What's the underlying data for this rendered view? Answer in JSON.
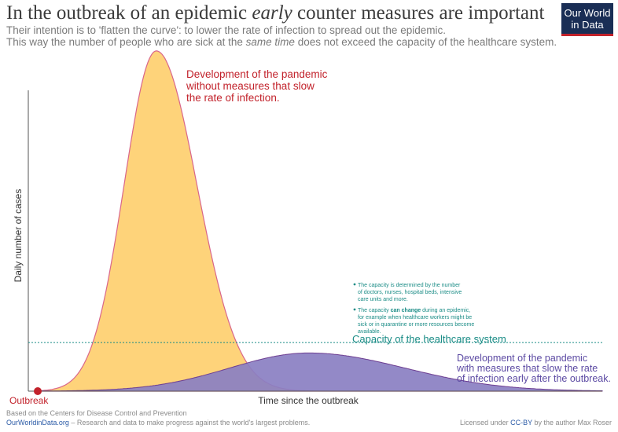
{
  "header": {
    "title_part1": "In the outbreak of an epidemic ",
    "title_em": "early",
    "title_part2": " counter measures are important",
    "subtitle1": "Their intention is to 'flatten the curve': to lower the rate of infection to spread out the epidemic.",
    "subtitle2_part1": "This way the number of people who are sick at the ",
    "subtitle2_em": "same time",
    "subtitle2_part2": " does not exceed the capacity of the healthcare system.",
    "logo_line1": "Our World",
    "logo_line2": "in Data"
  },
  "chart_data": {
    "type": "area",
    "xlabel": "Time since the outbreak",
    "ylabel": "Daily number of cases",
    "xlim": [
      0,
      100
    ],
    "ylim": [
      0,
      100
    ],
    "series": [
      {
        "name": "Development of the pandemic without measures that slow the rate of infection.",
        "label_lines": [
          "Development of the pandemic",
          "without measures that slow",
          "the rate of infection."
        ],
        "color": "#f2a900",
        "fill": "#fed37a",
        "peak_x": 21,
        "peak_y": 98,
        "width_left": 5.7,
        "width_right": 7.2
      },
      {
        "name": "Development of the pandemic with measures that slow the rate of infection early after the outbreak.",
        "label_lines": [
          "Development of the pandemic",
          "with measures that slow the rate",
          "of infection early after the outbreak."
        ],
        "color": "#6d3e91",
        "fill": "#8a7fc2",
        "peak_x": 48,
        "peak_y": 11,
        "width_left": 14,
        "width_right": 17
      }
    ],
    "capacity": {
      "label": "Capacity of the healthcare system",
      "y": 14,
      "color": "#1a8c86"
    },
    "outbreak_label": "Outbreak",
    "notes": {
      "note1_lines": [
        "The capacity is determined by the number",
        "of doctors, nurses, hospital beds, intensive",
        "care units and more."
      ],
      "note2_line1_a": "The capacity ",
      "note2_line1_b": "can change",
      "note2_line1_c": " during an epidemic,",
      "note2_lines_rest": [
        "for example when healthcare workers might be",
        "sick or in quarantine or more resources become",
        "available."
      ]
    }
  },
  "footer": {
    "source": "Based on the Centers for Disease Control and Prevention",
    "site": "OurWorldinData.org",
    "site_rest": " – Research and data to make progress against the world's largest problems.",
    "license_pre": "Licensed under ",
    "license_link": "CC-BY",
    "license_post": " by the author Max Roser"
  },
  "colors": {
    "title": "#3b3b3b",
    "unmitigated_text": "#c2222b",
    "mitigated_text": "#5c4aa3",
    "capacity": "#1a8c86",
    "outbreak": "#c2222b"
  }
}
